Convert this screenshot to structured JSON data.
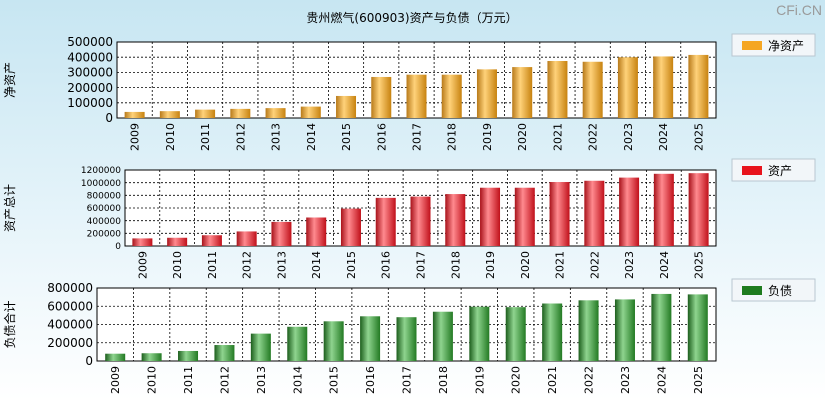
{
  "title": "贵州燃气(600903)资产与负债（万元）",
  "watermark": "CFi.CN",
  "colors": {
    "net_assets": "#f5a623",
    "total_assets": "#e8131c",
    "liabilities": "#1e7b1e"
  },
  "chart_data": [
    {
      "type": "bar",
      "ylabel": "净资产",
      "legend": "净资产",
      "legend_position": "right",
      "grid": true,
      "categories": [
        "2009",
        "2010",
        "2011",
        "2012",
        "2013",
        "2014",
        "2015",
        "2016",
        "2017",
        "2018",
        "2019",
        "2020",
        "2021",
        "2022",
        "2023",
        "2024",
        "2025"
      ],
      "values": [
        40000,
        45000,
        55000,
        60000,
        65000,
        75000,
        145000,
        270000,
        285000,
        285000,
        320000,
        335000,
        375000,
        370000,
        400000,
        405000,
        415000
      ],
      "ylim": [
        0,
        500000
      ],
      "yticks": [
        "0",
        "100000",
        "200000",
        "300000",
        "400000",
        "500000"
      ]
    },
    {
      "type": "bar",
      "ylabel": "资产总计",
      "legend": "资产",
      "legend_position": "right",
      "grid": true,
      "categories": [
        "2009",
        "2010",
        "2011",
        "2012",
        "2013",
        "2014",
        "2015",
        "2016",
        "2017",
        "2018",
        "2019",
        "2020",
        "2021",
        "2022",
        "2023",
        "2024",
        "2025"
      ],
      "values": [
        120000,
        130000,
        170000,
        230000,
        380000,
        450000,
        590000,
        760000,
        780000,
        820000,
        920000,
        920000,
        1010000,
        1030000,
        1080000,
        1140000,
        1150000
      ],
      "ylim": [
        0,
        1200000
      ],
      "yticks": [
        "0",
        "200000",
        "400000",
        "600000",
        "800000",
        "1000000",
        "1200000"
      ]
    },
    {
      "type": "bar",
      "ylabel": "负债合计",
      "legend": "负债",
      "legend_position": "right",
      "grid": true,
      "categories": [
        "2009",
        "2010",
        "2011",
        "2012",
        "2013",
        "2014",
        "2015",
        "2016",
        "2017",
        "2018",
        "2019",
        "2020",
        "2021",
        "2022",
        "2023",
        "2024",
        "2025"
      ],
      "values": [
        80000,
        85000,
        110000,
        175000,
        300000,
        375000,
        435000,
        490000,
        480000,
        540000,
        595000,
        590000,
        630000,
        665000,
        675000,
        735000,
        730000
      ],
      "ylim": [
        0,
        800000
      ],
      "yticks": [
        "0",
        "200000",
        "400000",
        "600000",
        "800000"
      ]
    }
  ]
}
